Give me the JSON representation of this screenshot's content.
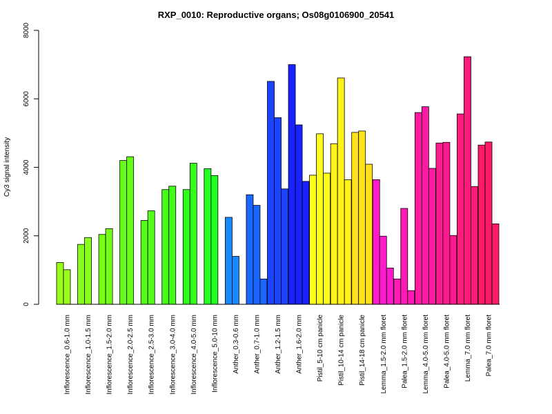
{
  "chart_data": {
    "type": "bar",
    "title": "RXP_0010: Reproductive organs; Os08g0106900_20541",
    "xlabel": "",
    "ylabel": "Cy3 signal intensity",
    "ylim": [
      0,
      8000
    ],
    "yticks": [
      0,
      2000,
      4000,
      6000,
      8000
    ],
    "grid": false,
    "groups": [
      {
        "label": "Inflorescence_0.6-1.0 mm",
        "color": "#99ff1a",
        "values": [
          1220,
          1010
        ]
      },
      {
        "label": "Inflorescence_1.0-1.5 mm",
        "color": "#88ff1a",
        "values": [
          1750,
          1950
        ]
      },
      {
        "label": "Inflorescence_1.5-2.0 mm",
        "color": "#77ff1a",
        "values": [
          2040,
          2210
        ]
      },
      {
        "label": "Inflorescence_2.0-2.5 mm",
        "color": "#66ff1a",
        "values": [
          4200,
          4310
        ]
      },
      {
        "label": "Inflorescence_2.5-3.0 mm",
        "color": "#55ff1a",
        "values": [
          2450,
          2730
        ]
      },
      {
        "label": "Inflorescence_3.0-4.0 mm",
        "color": "#44ff1a",
        "values": [
          3350,
          3450
        ]
      },
      {
        "label": "Inflorescence_4.0-5.0 mm",
        "color": "#33ff1a",
        "values": [
          3350,
          4120
        ]
      },
      {
        "label": "Inflorescence_5.0-10 mm",
        "color": "#22ff22",
        "values": [
          3960,
          3760
        ]
      },
      {
        "label": "Anther_0.3-0.6 mm",
        "color": "#1a88ff",
        "values": [
          2540,
          1400
        ]
      },
      {
        "label": "Anther_0.7-1.0 mm",
        "color": "#1a66ff",
        "values": [
          3200,
          2890,
          740
        ]
      },
      {
        "label": "Anther_1.2-1.5 mm",
        "color": "#1a44ff",
        "values": [
          6510,
          5450,
          3370
        ]
      },
      {
        "label": "Anther_1.6-2.0 mm",
        "color": "#1a22ff",
        "values": [
          7000,
          5240,
          3590
        ]
      },
      {
        "label": "Pistil_5-10 cm panicle",
        "color": "#ffff1a",
        "values": [
          3770,
          4980,
          3830
        ]
      },
      {
        "label": "Pistil_10-14 cm panicle",
        "color": "#fff11a",
        "values": [
          4690,
          6610,
          3640
        ]
      },
      {
        "label": "Pistil_14-18 cm panicle",
        "color": "#ffe31a",
        "values": [
          5020,
          5060,
          4090
        ]
      },
      {
        "label": "Lemma_1.5-2.0 mm floret",
        "color": "#ff1acc",
        "values": [
          3640,
          1990,
          1060
        ]
      },
      {
        "label": "Palea_1.5-2.0 mm floret",
        "color": "#ff1ab8",
        "values": [
          740,
          2800,
          400
        ]
      },
      {
        "label": "Lemma_4.0-5.0 mm floret",
        "color": "#ff1aa4",
        "values": [
          5600,
          5770,
          3970
        ]
      },
      {
        "label": "Palea_4.0-5.0 mm floret",
        "color": "#ff1a90",
        "values": [
          4710,
          4730,
          2010
        ]
      },
      {
        "label": "Lemma_7.0 mm floret",
        "color": "#ff1a7c",
        "values": [
          5560,
          7230,
          3440
        ]
      },
      {
        "label": "Palea_7.0 mm floret",
        "color": "#ff1a66",
        "values": [
          4650,
          4740,
          2350
        ]
      }
    ]
  }
}
